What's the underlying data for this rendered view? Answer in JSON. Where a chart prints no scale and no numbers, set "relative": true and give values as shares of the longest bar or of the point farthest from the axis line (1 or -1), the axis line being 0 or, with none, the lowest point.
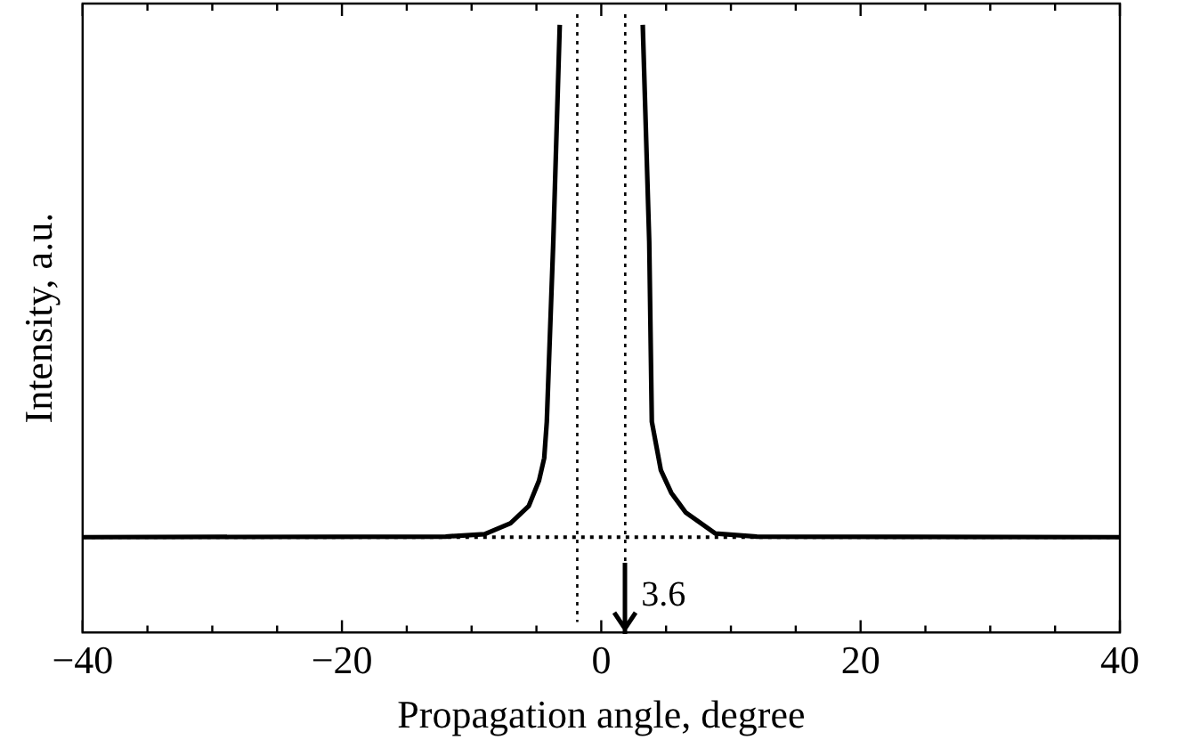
{
  "chart_data": {
    "type": "line",
    "xlabel": "Propagation angle, degree",
    "ylabel": "Intensity, a.u.",
    "relative": true,
    "xlim": [
      -40,
      40
    ],
    "xticks": [
      {
        "value": -40,
        "label": "−40"
      },
      {
        "value": -35,
        "label": null
      },
      {
        "value": -30,
        "label": null
      },
      {
        "value": -25,
        "label": null
      },
      {
        "value": -20,
        "label": "−20"
      },
      {
        "value": -15,
        "label": null
      },
      {
        "value": -10,
        "label": null
      },
      {
        "value": -5,
        "label": null
      },
      0,
      {
        "value": 5,
        "label": null
      },
      {
        "value": 10,
        "label": null
      },
      {
        "value": 15,
        "label": null
      },
      20,
      {
        "value": 25,
        "label": null
      },
      {
        "value": 30,
        "label": null
      },
      {
        "value": 35,
        "label": null
      },
      40
    ],
    "series": [
      {
        "color": "#000000",
        "x": [
          -40,
          -12,
          -9,
          -7,
          -5.6,
          -4.8,
          -4.4,
          -4.2,
          -3.7,
          -3.2
        ],
        "values": [
          0.157,
          0.158,
          0.162,
          0.18,
          0.208,
          0.25,
          0.287,
          0.347,
          0.643,
          1
        ]
      },
      {
        "color": "#000000",
        "x": [
          3.2,
          3.7,
          3.9,
          4.6,
          5.4,
          6.5,
          8.8,
          12,
          40
        ],
        "values": [
          1,
          0.643,
          0.347,
          0.267,
          0.23,
          0.198,
          0.163,
          0.158,
          0.157
        ]
      }
    ],
    "ref_lines": [
      {
        "axis": "y",
        "value": 0.157,
        "color": "#000000",
        "line_style": "dotted"
      },
      {
        "axis": "x",
        "value": -1.85,
        "color": "#000000",
        "line_style": "dotted"
      },
      {
        "axis": "x",
        "value": 1.85,
        "color": "#000000",
        "line_style": "dotted"
      }
    ],
    "annotations": [
      {
        "text": "3.6",
        "x": 1.85,
        "y": 0.06
      }
    ],
    "grid": false,
    "legend": false,
    "marker": "none",
    "line_style": "solid"
  }
}
